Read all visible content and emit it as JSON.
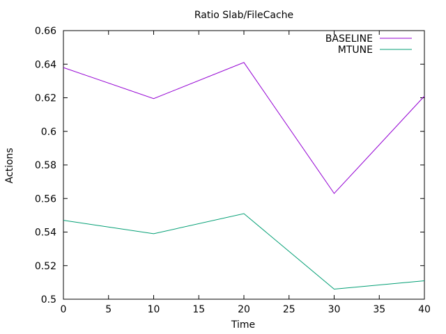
{
  "chart_data": {
    "type": "line",
    "title": "Ratio Slab/FileCache",
    "xlabel": "Time",
    "ylabel": "Actions",
    "xlim": [
      0,
      40
    ],
    "ylim": [
      0.5,
      0.66
    ],
    "xticks": [
      0,
      5,
      10,
      15,
      20,
      25,
      30,
      35,
      40
    ],
    "yticks": [
      0.5,
      0.52,
      0.54,
      0.56,
      0.58,
      0.6,
      0.62,
      0.64,
      0.66
    ],
    "ytick_labels": [
      "0.5",
      "0.52",
      "0.54",
      "0.56",
      "0.58",
      "0.6",
      "0.62",
      "0.64",
      "0.66"
    ],
    "grid": false,
    "legend_position": "top-right",
    "x": [
      0,
      10,
      20,
      30,
      40
    ],
    "series": [
      {
        "name": "BASELINE",
        "color": "#9400d3",
        "values": [
          0.638,
          0.6195,
          0.641,
          0.563,
          0.621
        ]
      },
      {
        "name": "MTUNE",
        "color": "#009e73",
        "values": [
          0.547,
          0.539,
          0.551,
          0.506,
          0.511
        ]
      }
    ]
  }
}
